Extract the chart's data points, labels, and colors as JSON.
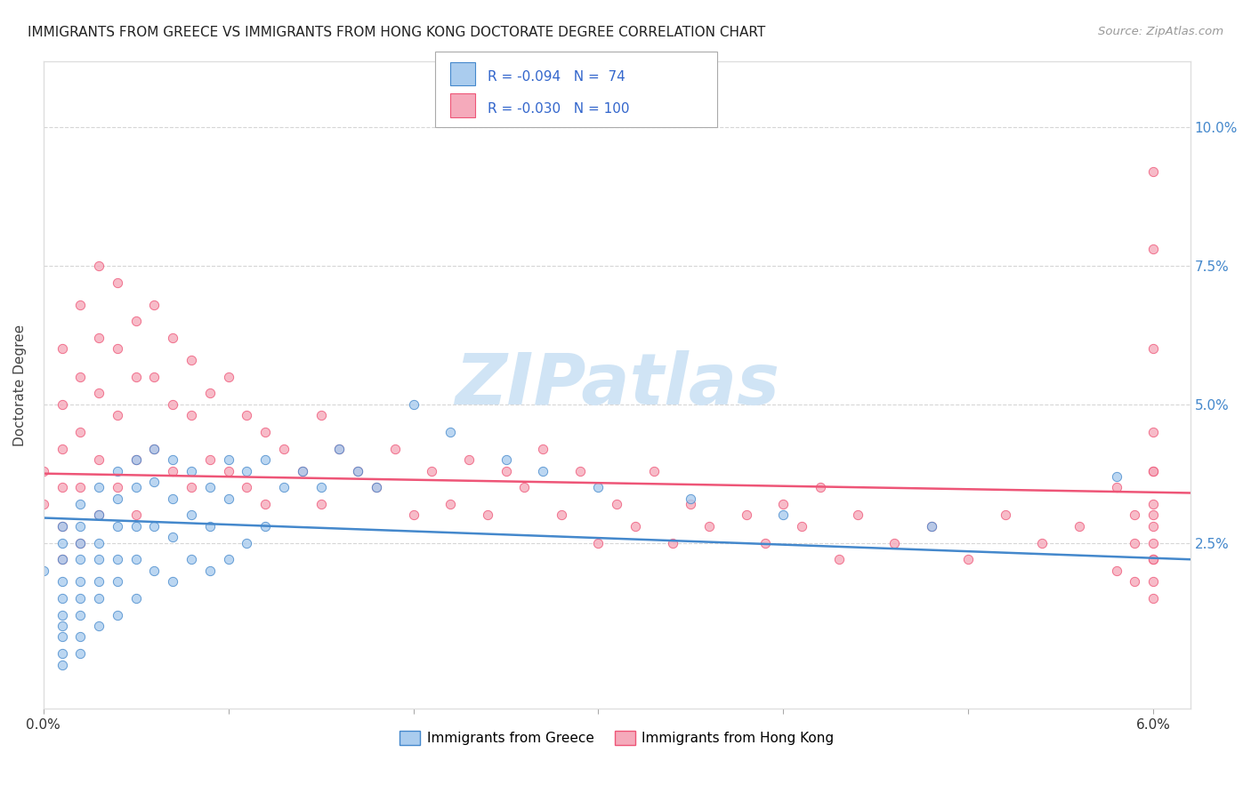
{
  "title": "IMMIGRANTS FROM GREECE VS IMMIGRANTS FROM HONG KONG DOCTORATE DEGREE CORRELATION CHART",
  "source": "Source: ZipAtlas.com",
  "ylabel": "Doctorate Degree",
  "ytick_labels": [
    "2.5%",
    "5.0%",
    "7.5%",
    "10.0%"
  ],
  "ytick_values": [
    0.025,
    0.05,
    0.075,
    0.1
  ],
  "xlim": [
    0.0,
    0.062
  ],
  "ylim": [
    -0.005,
    0.112
  ],
  "color_greece": "#aaccee",
  "color_hong_kong": "#f5aabb",
  "color_greece_line": "#4488cc",
  "color_hong_kong_line": "#ee5577",
  "watermark_color": "#d0e4f5",
  "background_color": "#ffffff",
  "grid_color": "#cccccc",
  "greece_x": [
    0.0,
    0.001,
    0.001,
    0.001,
    0.001,
    0.001,
    0.001,
    0.001,
    0.001,
    0.001,
    0.001,
    0.002,
    0.002,
    0.002,
    0.002,
    0.002,
    0.002,
    0.002,
    0.002,
    0.002,
    0.003,
    0.003,
    0.003,
    0.003,
    0.003,
    0.003,
    0.003,
    0.004,
    0.004,
    0.004,
    0.004,
    0.004,
    0.004,
    0.005,
    0.005,
    0.005,
    0.005,
    0.005,
    0.006,
    0.006,
    0.006,
    0.006,
    0.007,
    0.007,
    0.007,
    0.007,
    0.008,
    0.008,
    0.008,
    0.009,
    0.009,
    0.009,
    0.01,
    0.01,
    0.01,
    0.011,
    0.011,
    0.012,
    0.012,
    0.013,
    0.014,
    0.015,
    0.016,
    0.017,
    0.018,
    0.02,
    0.022,
    0.025,
    0.027,
    0.03,
    0.035,
    0.04,
    0.048,
    0.058
  ],
  "greece_y": [
    0.02,
    0.028,
    0.025,
    0.022,
    0.018,
    0.015,
    0.012,
    0.01,
    0.008,
    0.005,
    0.003,
    0.032,
    0.028,
    0.025,
    0.022,
    0.018,
    0.015,
    0.012,
    0.008,
    0.005,
    0.035,
    0.03,
    0.025,
    0.022,
    0.018,
    0.015,
    0.01,
    0.038,
    0.033,
    0.028,
    0.022,
    0.018,
    0.012,
    0.04,
    0.035,
    0.028,
    0.022,
    0.015,
    0.042,
    0.036,
    0.028,
    0.02,
    0.04,
    0.033,
    0.026,
    0.018,
    0.038,
    0.03,
    0.022,
    0.035,
    0.028,
    0.02,
    0.04,
    0.033,
    0.022,
    0.038,
    0.025,
    0.04,
    0.028,
    0.035,
    0.038,
    0.035,
    0.042,
    0.038,
    0.035,
    0.05,
    0.045,
    0.04,
    0.038,
    0.035,
    0.033,
    0.03,
    0.028,
    0.037
  ],
  "hk_x": [
    0.0,
    0.0,
    0.001,
    0.001,
    0.001,
    0.001,
    0.001,
    0.001,
    0.002,
    0.002,
    0.002,
    0.002,
    0.002,
    0.003,
    0.003,
    0.003,
    0.003,
    0.003,
    0.004,
    0.004,
    0.004,
    0.004,
    0.005,
    0.005,
    0.005,
    0.005,
    0.006,
    0.006,
    0.006,
    0.007,
    0.007,
    0.007,
    0.008,
    0.008,
    0.008,
    0.009,
    0.009,
    0.01,
    0.01,
    0.011,
    0.011,
    0.012,
    0.012,
    0.013,
    0.014,
    0.015,
    0.015,
    0.016,
    0.017,
    0.018,
    0.019,
    0.02,
    0.021,
    0.022,
    0.023,
    0.024,
    0.025,
    0.026,
    0.027,
    0.028,
    0.029,
    0.03,
    0.031,
    0.032,
    0.033,
    0.034,
    0.035,
    0.036,
    0.038,
    0.039,
    0.04,
    0.041,
    0.042,
    0.043,
    0.044,
    0.046,
    0.048,
    0.05,
    0.052,
    0.054,
    0.056,
    0.058,
    0.058,
    0.059,
    0.059,
    0.059,
    0.06,
    0.06,
    0.06,
    0.06,
    0.06,
    0.06,
    0.06,
    0.06,
    0.06,
    0.06,
    0.06,
    0.06,
    0.06,
    0.06
  ],
  "hk_y": [
    0.038,
    0.032,
    0.06,
    0.05,
    0.042,
    0.035,
    0.028,
    0.022,
    0.068,
    0.055,
    0.045,
    0.035,
    0.025,
    0.075,
    0.062,
    0.052,
    0.04,
    0.03,
    0.072,
    0.06,
    0.048,
    0.035,
    0.065,
    0.055,
    0.04,
    0.03,
    0.068,
    0.055,
    0.042,
    0.062,
    0.05,
    0.038,
    0.058,
    0.048,
    0.035,
    0.052,
    0.04,
    0.055,
    0.038,
    0.048,
    0.035,
    0.045,
    0.032,
    0.042,
    0.038,
    0.048,
    0.032,
    0.042,
    0.038,
    0.035,
    0.042,
    0.03,
    0.038,
    0.032,
    0.04,
    0.03,
    0.038,
    0.035,
    0.042,
    0.03,
    0.038,
    0.025,
    0.032,
    0.028,
    0.038,
    0.025,
    0.032,
    0.028,
    0.03,
    0.025,
    0.032,
    0.028,
    0.035,
    0.022,
    0.03,
    0.025,
    0.028,
    0.022,
    0.03,
    0.025,
    0.028,
    0.035,
    0.02,
    0.03,
    0.025,
    0.018,
    0.092,
    0.078,
    0.06,
    0.045,
    0.038,
    0.03,
    0.025,
    0.022,
    0.018,
    0.015,
    0.038,
    0.028,
    0.022,
    0.032
  ]
}
